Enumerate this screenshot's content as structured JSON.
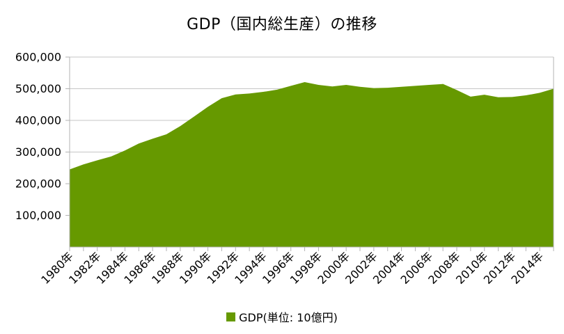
{
  "chart_data": {
    "type": "area",
    "title": "GDP（国内総生産）の推移",
    "legend": {
      "label": "GDP(単位: 10億円)",
      "position": "bottom"
    },
    "x": [
      1980,
      1981,
      1982,
      1983,
      1984,
      1985,
      1986,
      1987,
      1988,
      1989,
      1990,
      1991,
      1992,
      1993,
      1994,
      1995,
      1996,
      1997,
      1998,
      1999,
      2000,
      2001,
      2002,
      2003,
      2004,
      2005,
      2006,
      2007,
      2008,
      2009,
      2010,
      2011,
      2012,
      2013,
      2014,
      2015
    ],
    "series": [
      {
        "name": "GDP(単位: 10億円)",
        "values": [
          245000,
          261000,
          274000,
          286000,
          305000,
          327000,
          342000,
          356000,
          382000,
          412000,
          443000,
          470000,
          482000,
          485000,
          490000,
          497000,
          509000,
          521000,
          512000,
          507000,
          512000,
          506000,
          502000,
          503000,
          506000,
          509000,
          512000,
          515000,
          496000,
          475000,
          481000,
          473000,
          474000,
          479000,
          487000,
          500000
        ]
      }
    ],
    "xlabel": "",
    "ylabel": "",
    "ylim": [
      0,
      600000
    ],
    "grid": "horizontal",
    "y_ticks": [
      {
        "value": 100000,
        "label": "100,000"
      },
      {
        "value": 200000,
        "label": "200,000"
      },
      {
        "value": 300000,
        "label": "300,000"
      },
      {
        "value": 400000,
        "label": "400,000"
      },
      {
        "value": 500000,
        "label": "500,000"
      },
      {
        "value": 600000,
        "label": "600,000"
      }
    ],
    "x_tick_labels": [
      "1980年",
      "1982年",
      "1984年",
      "1986年",
      "1988年",
      "1990年",
      "1992年",
      "1994年",
      "1996年",
      "1998年",
      "2000年",
      "2002年",
      "2004年",
      "2006年",
      "2008年",
      "2010年",
      "2012年",
      "2014年"
    ],
    "x_tick_step": 2,
    "colors": {
      "area": "#669900",
      "axis": "#b3b3b3",
      "gridline": "#c6c6c6",
      "text": "#000000",
      "background": "#ffffff"
    }
  }
}
